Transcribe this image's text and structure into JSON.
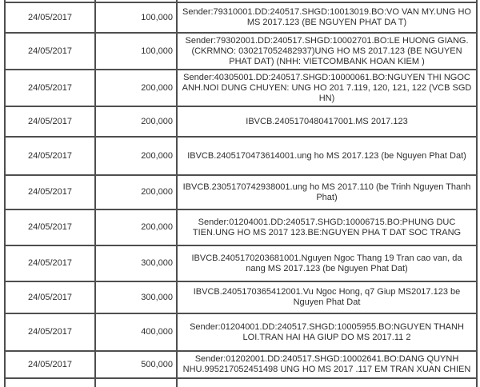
{
  "colors": {
    "border": "#4f4f4f",
    "text": "#2e2e2e",
    "background": "#ffffff"
  },
  "table": {
    "rows": [
      {
        "date": "24/05/2017",
        "amount": "100,000",
        "description": "Sender:79310001.DD:240517.SHGD:10013019.BO:VO VAN MY.UNG HO MS 2017.123 (BE NGUYEN PHAT DA T)"
      },
      {
        "date": "24/05/2017",
        "amount": "100,000",
        "description": "Sender:79302001.DD:240517.SHGD:10002701.BO:LE HUONG GIANG.(CKRMNO: 030217052482937)UNG HO MS 2017.123 (BE NGUYEN PHAT DAT) (NHH: VIETCOMBANK HOAN KIEM )"
      },
      {
        "date": "24/05/2017",
        "amount": "200,000",
        "description": "Sender:40305001.DD:240517.SHGD:10000061.BO:NGUYEN THI NGOC ANH.NOI DUNG CHUYEN: UNG HO 201 7.119, 120, 121, 122 (VCB SGD HN)"
      },
      {
        "date": "24/05/2017",
        "amount": "200,000",
        "description": "IBVCB.2405170480417001.MS 2017.123"
      },
      {
        "date": "24/05/2017",
        "amount": "200,000",
        "description": "IBVCB.2405170473614001.ung ho MS 2017.123 (be Nguyen Phat Dat)"
      },
      {
        "date": "24/05/2017",
        "amount": "200,000",
        "description": "IBVCB.2305170742938001.ung ho MS 2017.110 (be Trinh Nguyen Thanh Phat)"
      },
      {
        "date": "24/05/2017",
        "amount": "200,000",
        "description": "Sender:01204001.DD:240517.SHGD:10006715.BO:PHUNG DUC TIEN.UNG HO MS 2017 123.BE:NGUYEN PHA T DAT SOC TRANG"
      },
      {
        "date": "24/05/2017",
        "amount": "300,000",
        "description": "IBVCB.2405170203681001.Nguyen Ngoc Thang 19 Tran cao van, da nang MS 2017.123 (be Nguyen Phat Dat)"
      },
      {
        "date": "24/05/2017",
        "amount": "300,000",
        "description": "IBVCB.2405170365412001.Vu Ngoc Hong, q7 Giup MS2017.123 be Nguyen Phat Dat"
      },
      {
        "date": "24/05/2017",
        "amount": "400,000",
        "description": "Sender:01204001.DD:240517.SHGD:10005955.BO:NGUYEN THANH LOI.TRAN HAI HA GIUP DO MS 2017.11 2"
      },
      {
        "date": "24/05/2017",
        "amount": "500,000",
        "description": "Sender:01202001.DD:240517.SHGD:10002641.BO:DANG QUYNH NHU.995217052451498 UNG HO MS 2017 .117 EM TRAN XUAN CHIEN"
      }
    ]
  }
}
